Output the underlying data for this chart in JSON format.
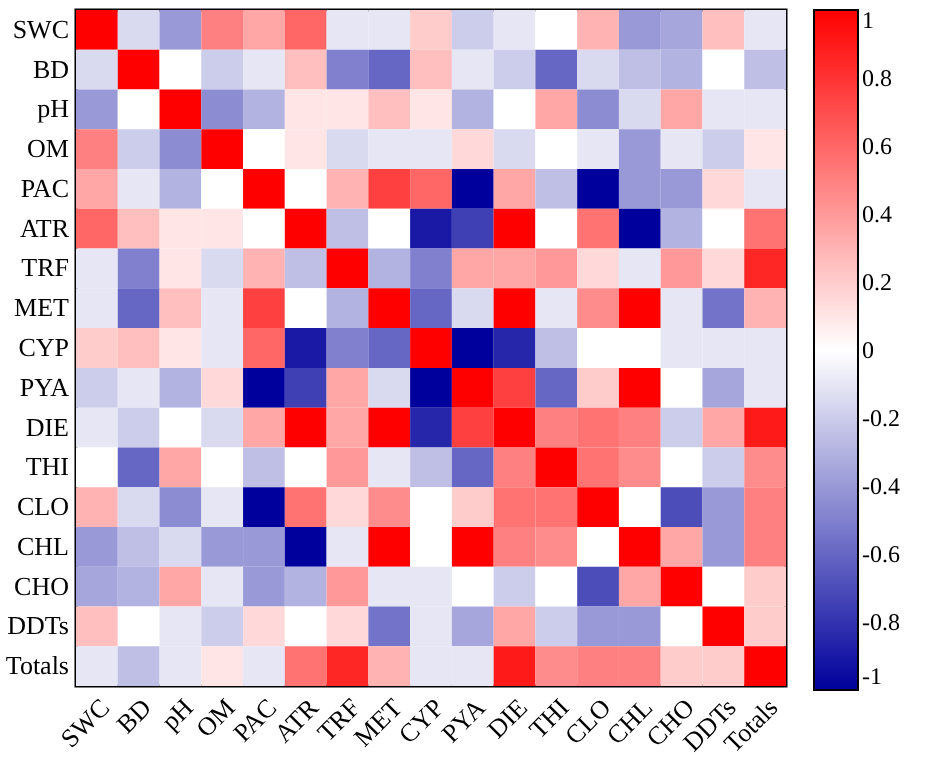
{
  "chart_data": {
    "type": "heatmap",
    "categories": [
      "SWC",
      "BD",
      "pH",
      "OM",
      "PAC",
      "ATR",
      "TRF",
      "MET",
      "CYP",
      "PYA",
      "DIE",
      "THI",
      "CLO",
      "CHL",
      "CHO",
      "DDTs",
      "Totals"
    ],
    "y_categories": [
      "SWC",
      "BD",
      "pH",
      "OM",
      "PAC",
      "ATR",
      "TRF",
      "MET",
      "CYP",
      "PYA",
      "DIE",
      "THI",
      "CLO",
      "CHL",
      "CHO",
      "DDTs",
      "Totals"
    ],
    "cells": [
      [
        1,
        -0.15,
        -0.4,
        0.5,
        0.35,
        0.6,
        -0.1,
        -0.1,
        0.2,
        -0.2,
        -0.1,
        0,
        0.3,
        -0.4,
        -0.35,
        0.25,
        -0.1
      ],
      [
        -0.15,
        1,
        0,
        -0.2,
        -0.1,
        0.25,
        -0.5,
        -0.6,
        0.25,
        -0.1,
        -0.2,
        -0.6,
        -0.15,
        -0.25,
        -0.3,
        0,
        -0.25
      ],
      [
        -0.4,
        0,
        1,
        -0.45,
        -0.3,
        0.1,
        0.1,
        0.25,
        0.1,
        -0.3,
        0,
        0.35,
        -0.45,
        -0.15,
        0.35,
        -0.1,
        -0.1
      ],
      [
        0.5,
        -0.2,
        -0.45,
        1,
        0,
        0.1,
        -0.15,
        -0.1,
        -0.1,
        0.15,
        -0.15,
        0,
        -0.1,
        -0.4,
        -0.1,
        -0.2,
        0.1
      ],
      [
        0.35,
        -0.1,
        -0.3,
        0,
        1,
        0,
        0.3,
        0.75,
        0.6,
        -1,
        0.35,
        -0.25,
        -1,
        -0.4,
        -0.4,
        0.15,
        -0.1
      ],
      [
        0.6,
        0.25,
        0.1,
        0.1,
        0,
        1,
        -0.25,
        0,
        -0.9,
        -0.75,
        1,
        0,
        0.55,
        -1,
        -0.3,
        0,
        0.55
      ],
      [
        -0.1,
        -0.5,
        0.1,
        -0.15,
        0.3,
        -0.25,
        1,
        -0.3,
        -0.5,
        0.35,
        0.35,
        0.4,
        0.15,
        -0.1,
        0.4,
        0.15,
        0.85
      ],
      [
        -0.1,
        -0.6,
        0.25,
        -0.1,
        0.75,
        0,
        -0.3,
        1,
        -0.6,
        -0.15,
        1,
        -0.1,
        0.45,
        1,
        -0.1,
        -0.55,
        0.3
      ],
      [
        0.2,
        0.25,
        0.1,
        -0.1,
        0.6,
        -0.9,
        -0.5,
        -0.6,
        1,
        -1,
        -0.85,
        -0.25,
        0,
        0,
        -0.1,
        -0.1,
        -0.1
      ],
      [
        -0.2,
        -0.1,
        -0.3,
        0.15,
        -1,
        -0.75,
        0.35,
        -0.15,
        -1,
        1,
        0.75,
        -0.6,
        0.2,
        1,
        0,
        -0.35,
        -0.1
      ],
      [
        -0.1,
        -0.2,
        0,
        -0.15,
        0.35,
        1,
        0.35,
        1,
        -0.85,
        0.75,
        1,
        0.5,
        0.55,
        0.5,
        -0.2,
        0.35,
        0.9
      ],
      [
        0,
        -0.6,
        0.35,
        0,
        -0.25,
        0,
        0.4,
        -0.1,
        -0.25,
        -0.6,
        0.5,
        1,
        0.55,
        0.45,
        0,
        -0.2,
        0.45
      ],
      [
        0.3,
        -0.15,
        -0.45,
        -0.1,
        -1,
        0.55,
        0.15,
        0.45,
        0,
        0.2,
        0.55,
        0.55,
        1,
        0,
        -0.7,
        -0.4,
        0.5
      ],
      [
        -0.4,
        -0.25,
        -0.15,
        -0.4,
        -0.4,
        -1,
        -0.1,
        1,
        0,
        1,
        0.5,
        0.45,
        0,
        1,
        0.35,
        -0.4,
        0.5
      ],
      [
        -0.35,
        -0.3,
        0.35,
        -0.1,
        -0.4,
        -0.3,
        0.4,
        -0.1,
        -0.1,
        0,
        -0.2,
        0,
        -0.7,
        0.35,
        1,
        0,
        0.2
      ],
      [
        0.25,
        0,
        -0.1,
        -0.2,
        0.15,
        0,
        0.15,
        -0.55,
        -0.1,
        -0.35,
        0.35,
        -0.2,
        -0.4,
        -0.4,
        0,
        1,
        0.2
      ],
      [
        -0.1,
        -0.25,
        -0.1,
        0.1,
        -0.1,
        0.55,
        0.85,
        0.3,
        -0.1,
        -0.1,
        0.9,
        0.45,
        0.5,
        0.5,
        0.2,
        0.2,
        1
      ]
    ],
    "clim": [
      -1,
      1
    ],
    "cticks": [
      -1,
      -0.8,
      -0.6,
      -0.4,
      -0.2,
      0,
      0.2,
      0.4,
      0.6,
      0.8,
      1
    ]
  }
}
